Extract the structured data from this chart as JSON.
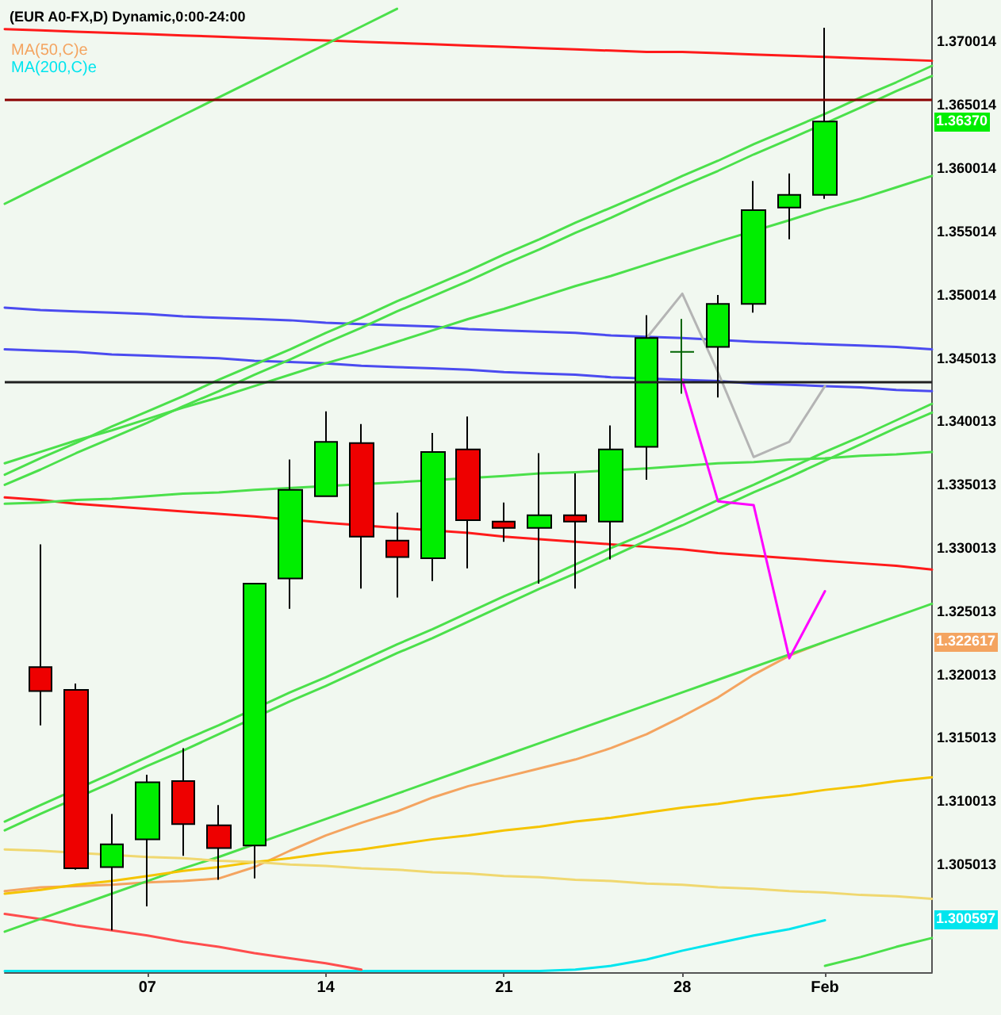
{
  "chart_data": {
    "type": "candlestick",
    "title": "(EUR A0-FX,D) Dynamic,0:00-24:00",
    "categories": [
      null,
      null,
      null,
      null,
      "07",
      null,
      null,
      null,
      null,
      "14",
      null,
      null,
      null,
      null,
      "21",
      null,
      null,
      null,
      null,
      "28",
      null,
      null,
      null,
      "Feb",
      null,
      null,
      null
    ],
    "ohlc": [
      null,
      [
        1.3206,
        1.3303,
        1.316,
        1.3187
      ],
      [
        1.3188,
        1.3193,
        1.3046,
        1.3047
      ],
      [
        1.3048,
        1.309,
        1.2998,
        1.3066
      ],
      [
        1.307,
        1.3121,
        1.3017,
        1.3115
      ],
      [
        1.3116,
        1.3142,
        1.3057,
        1.3082
      ],
      [
        1.3081,
        1.3097,
        1.3038,
        1.3063
      ],
      [
        1.3065,
        1.3272,
        1.3039,
        1.3272
      ],
      [
        1.3276,
        1.337,
        1.3252,
        1.3346
      ],
      [
        1.3341,
        1.3408,
        1.3341,
        1.3384
      ],
      [
        1.3383,
        1.3398,
        1.3268,
        1.3309
      ],
      [
        1.3306,
        1.3328,
        1.3261,
        1.3293
      ],
      [
        1.3292,
        1.3391,
        1.3274,
        1.3376
      ],
      [
        1.3378,
        1.3404,
        1.3284,
        1.3322
      ],
      [
        1.3321,
        1.3336,
        1.3305,
        1.3316
      ],
      [
        1.3316,
        1.3375,
        1.3272,
        1.3326
      ],
      [
        1.3326,
        1.3359,
        1.3268,
        1.3321
      ],
      [
        1.3321,
        1.3397,
        1.3291,
        1.3378
      ],
      [
        1.338,
        1.3484,
        1.3354,
        1.3466
      ],
      [
        1.3455,
        1.3481,
        1.3422,
        1.3455
      ],
      [
        1.3459,
        1.35,
        1.3419,
        1.3493
      ],
      [
        1.3493,
        1.359,
        1.3486,
        1.3567
      ],
      [
        1.3569,
        1.3596,
        1.3544,
        1.3579
      ],
      [
        1.3579,
        1.3711,
        1.3576,
        1.3637
      ],
      null,
      null,
      null
    ],
    "colors": [
      null,
      "#ee0000",
      "#ee0000",
      "#00ee00",
      "#00ee00",
      "#ee0000",
      "#ee0000",
      "#00ee00",
      "#00ee00",
      "#00ee00",
      "#ee0000",
      "#ee0000",
      "#00ee00",
      "#ee0000",
      "#ee0000",
      "#00ee00",
      "#ee0000",
      "#00ee00",
      "#00ee00",
      "#006400",
      "#00ee00",
      "#00ee00",
      "#00ee00",
      "#00ee00",
      null,
      null,
      null
    ],
    "series": [
      {
        "name": "MA(50,C)e",
        "type": "line",
        "color": "#f4a460",
        "values": [
          1.3029,
          1.3032,
          1.3033,
          1.3034,
          1.3036,
          1.3037,
          1.3039,
          1.3048,
          1.3061,
          1.3073,
          1.3083,
          1.3092,
          1.3103,
          1.3112,
          1.3119,
          1.3126,
          1.3133,
          1.3142,
          1.3153,
          1.3167,
          1.3182,
          1.32,
          1.3215,
          1.3226,
          null,
          null,
          null
        ]
      },
      {
        "name": "MA(200,C)e",
        "type": "line",
        "color": "#00e5ee",
        "values": [
          1.2966,
          1.2966,
          1.2966,
          1.2966,
          1.2966,
          1.2966,
          1.2966,
          1.2966,
          1.2966,
          1.2966,
          1.2966,
          1.2966,
          1.2966,
          1.2966,
          1.2966,
          1.2966,
          1.2967,
          1.297,
          1.2975,
          1.2982,
          1.2988,
          1.2994,
          1.2999,
          1.3006,
          null,
          null,
          null
        ]
      },
      {
        "type": "line",
        "color": "#ff1a1a",
        "values": [
          1.371,
          1.3709,
          1.3708,
          1.3707,
          1.3706,
          1.3705,
          1.3704,
          1.3703,
          1.3702,
          1.3701,
          1.37,
          1.3699,
          1.3698,
          1.3697,
          1.3696,
          1.3695,
          1.3694,
          1.3693,
          1.3692,
          1.3692,
          1.3691,
          1.369,
          1.3689,
          1.3688,
          1.3687,
          1.3686,
          1.3685
        ]
      },
      {
        "type": "line",
        "color": "#ff1a1a",
        "values": [
          1.334,
          1.3338,
          1.3335,
          1.3333,
          1.3331,
          1.3329,
          1.3327,
          1.3325,
          null,
          1.332,
          null,
          1.3316,
          null,
          1.3312,
          1.3309,
          1.3307,
          1.3305,
          1.3303,
          1.3301,
          1.3299,
          1.3296,
          1.3294,
          1.3292,
          1.329,
          1.3288,
          1.3286,
          1.3283
        ]
      },
      {
        "type": "line",
        "color": "#ff4d4d",
        "values": [
          1.3011,
          1.3007,
          1.3002,
          1.2998,
          1.2994,
          1.2989,
          1.2985,
          1.298,
          1.2976,
          1.2972,
          1.2967,
          null,
          null,
          null,
          null,
          null,
          null,
          null,
          null,
          null,
          null,
          null,
          null,
          null,
          null,
          null,
          null
        ]
      },
      {
        "type": "line",
        "color": "#4b4bf0",
        "values": [
          1.349,
          1.3488,
          1.3487,
          1.3486,
          1.3485,
          1.3483,
          1.3482,
          1.3481,
          1.348,
          1.3478,
          1.3477,
          1.3476,
          1.3475,
          1.3473,
          1.3472,
          1.3471,
          1.347,
          1.3468,
          1.3467,
          1.3466,
          null,
          1.3463,
          1.3462,
          1.3461,
          1.346,
          1.3459,
          1.3457
        ]
      },
      {
        "type": "line",
        "color": "#4b4bf0",
        "values": [
          1.3457,
          1.3456,
          1.3455,
          1.3453,
          1.3452,
          1.3451,
          1.345,
          1.3448,
          1.3447,
          1.3446,
          1.3444,
          1.3443,
          1.3442,
          1.3441,
          1.3439,
          1.3438,
          1.3437,
          1.3435,
          null,
          1.3433,
          1.3432,
          1.343,
          1.3429,
          1.3428,
          1.3427,
          1.3425,
          1.3424
        ]
      },
      {
        "type": "line",
        "color": "#4be04b",
        "values": [
          1.3572,
          1.3586,
          1.36,
          1.3614,
          1.3628,
          1.3642,
          1.3656,
          1.367,
          1.3684,
          1.3698,
          1.3712,
          1.3726,
          null,
          null,
          null,
          null,
          null,
          null,
          null,
          null,
          null,
          null,
          null,
          null,
          null,
          null,
          null
        ]
      },
      {
        "type": "line",
        "color": "#4be04b",
        "values": [
          1.3358,
          1.3371,
          1.3383,
          1.3396,
          1.3408,
          1.342,
          1.3433,
          1.3445,
          1.3457,
          1.347,
          1.3482,
          1.3495,
          1.3507,
          1.3519,
          1.3532,
          1.3544,
          1.3557,
          1.3569,
          1.3581,
          1.3594,
          1.3606,
          1.3619,
          1.3631,
          1.3643,
          1.3656,
          1.3668,
          1.3681
        ]
      },
      {
        "type": "line",
        "color": "#4be04b",
        "values": [
          1.335,
          1.3362,
          1.3375,
          1.3387,
          1.3399,
          1.3412,
          1.3424,
          1.3437,
          1.3449,
          1.3462,
          1.3474,
          1.3487,
          1.3499,
          1.3511,
          1.3524,
          1.3536,
          1.3549,
          1.3561,
          1.3574,
          1.3586,
          1.3598,
          1.3611,
          1.3623,
          null,
          1.3648,
          1.3661,
          1.3673
        ]
      },
      {
        "type": "line",
        "color": "#4be04b",
        "values": [
          1.3367,
          1.3376,
          1.3385,
          1.3393,
          1.3402,
          1.3411,
          1.3419,
          1.3428,
          1.3437,
          1.3446,
          1.3454,
          1.3463,
          1.3472,
          1.3481,
          1.3489,
          1.3498,
          1.3507,
          1.3515,
          1.3524,
          1.3533,
          1.3542,
          null,
          1.3559,
          1.3568,
          1.3576,
          1.3585,
          1.3594
        ]
      },
      {
        "type": "line",
        "color": "#4be04b",
        "values": [
          1.3084,
          1.3097,
          null,
          1.3122,
          1.3135,
          1.3148,
          1.316,
          null,
          1.3186,
          1.3198,
          1.3211,
          1.3224,
          1.3236,
          1.3249,
          1.3262,
          1.3274,
          1.3287,
          1.33,
          1.3312,
          1.3325,
          1.3338,
          1.335,
          1.3363,
          1.3376,
          1.3388,
          1.3401,
          1.3414
        ]
      },
      {
        "type": "line",
        "color": "#4be04b",
        "values": [
          1.3077,
          1.309,
          null,
          1.3115,
          1.3128,
          1.314,
          1.3153,
          null,
          1.3179,
          1.3191,
          1.3204,
          1.3217,
          1.3229,
          1.3242,
          1.3255,
          1.3268,
          1.328,
          1.3293,
          1.3306,
          1.3318,
          1.3331,
          1.3344,
          1.3356,
          1.3369,
          1.3382,
          1.3395,
          1.3407
        ]
      },
      {
        "type": "line",
        "color": "#4be04b",
        "values": [
          1.2997,
          1.3007,
          1.3017,
          1.3027,
          1.3037,
          1.3047,
          1.3056,
          null,
          1.3076,
          1.3086,
          1.3096,
          1.3106,
          1.3116,
          1.3126,
          1.3136,
          1.3146,
          1.3156,
          1.3166,
          1.3176,
          1.3186,
          1.3196,
          1.3206,
          1.3216,
          1.3226,
          1.3236,
          1.3246,
          1.3256
        ]
      },
      {
        "type": "line",
        "color": "#4be04b",
        "values": [
          1.3335,
          1.3336,
          1.3338,
          1.3339,
          1.3341,
          1.3343,
          1.3344,
          1.3346,
          null,
          null,
          null,
          1.3352,
          null,
          null,
          1.3357,
          1.3359,
          1.336,
          null,
          1.3363,
          1.3365,
          1.3367,
          1.3368,
          1.337,
          1.3371,
          1.3373,
          1.3374,
          1.3376
        ]
      },
      {
        "type": "line",
        "color": "#4be04b",
        "values": [
          null,
          null,
          null,
          null,
          null,
          null,
          null,
          null,
          null,
          null,
          null,
          null,
          null,
          null,
          null,
          null,
          null,
          null,
          null,
          null,
          null,
          null,
          null,
          1.297,
          1.2977,
          1.2985,
          1.2992
        ]
      },
      {
        "type": "line",
        "color": "#f5c400",
        "values": [
          1.3027,
          1.303,
          1.3034,
          1.3037,
          1.3041,
          1.3045,
          1.3048,
          1.3052,
          1.3055,
          1.3059,
          1.3062,
          1.3066,
          1.307,
          1.3073,
          1.3077,
          1.308,
          1.3084,
          1.3087,
          1.3091,
          1.3095,
          1.3098,
          1.3102,
          1.3105,
          1.3109,
          1.3112,
          1.3116,
          1.3119
        ]
      },
      {
        "type": "line",
        "color": "#f0d870",
        "values": [
          1.3062,
          1.3061,
          null,
          null,
          1.3056,
          1.3055,
          1.3053,
          1.3052,
          1.305,
          1.3049,
          1.3047,
          1.3046,
          1.3044,
          1.3043,
          1.3041,
          1.304,
          1.3038,
          1.3037,
          1.3035,
          1.3034,
          1.3032,
          1.3031,
          1.3029,
          1.3028,
          1.3026,
          1.3025,
          1.3023
        ]
      },
      {
        "type": "line",
        "color": "#ff00ff",
        "values": [
          null,
          null,
          null,
          null,
          null,
          null,
          null,
          null,
          null,
          null,
          null,
          null,
          null,
          null,
          null,
          null,
          null,
          null,
          null,
          1.3433,
          1.3337,
          1.3334,
          1.3213,
          1.3266,
          null,
          null,
          null
        ]
      },
      {
        "type": "line",
        "color": "#b4b4b4",
        "values": [
          null,
          null,
          null,
          null,
          null,
          null,
          null,
          null,
          null,
          null,
          null,
          null,
          null,
          null,
          null,
          null,
          null,
          null,
          1.3466,
          1.3501,
          1.3439,
          1.3372,
          1.3384,
          1.3428,
          null,
          null,
          null
        ]
      }
    ],
    "ylim": [
      1.2965,
      1.3733
    ],
    "yticks": [
      1.305013,
      1.310013,
      1.315013,
      1.320013,
      1.325013,
      1.330013,
      1.335013,
      1.340013,
      1.345013,
      1.350014,
      1.355014,
      1.360014,
      1.365014,
      1.370014
    ],
    "ref_lines": [
      {
        "axis": "y",
        "value": 1.3655,
        "color": "#8b0000"
      },
      {
        "axis": "y",
        "value": 1.3432,
        "color": "#202020"
      }
    ],
    "annotations": [
      {
        "text": "1.36370",
        "y": 1.3637
      },
      {
        "text": "1.322617",
        "y": 1.322617
      },
      {
        "text": "1.300597",
        "y": 1.300597
      }
    ],
    "grid": false,
    "legend": "top left",
    "marker": "none"
  }
}
